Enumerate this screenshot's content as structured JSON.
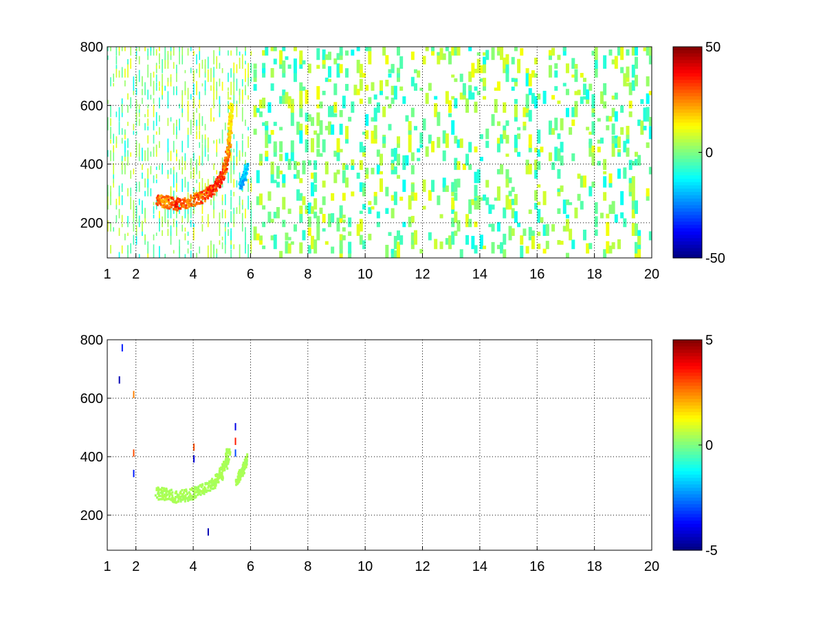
{
  "chart_data": [
    {
      "type": "heatmap",
      "title": "",
      "xlabel": "",
      "ylabel": "",
      "xlim": [
        1,
        20
      ],
      "ylim": [
        80,
        800
      ],
      "x_ticks": [
        1,
        2,
        4,
        6,
        8,
        10,
        12,
        14,
        16,
        18,
        20
      ],
      "y_ticks": [
        200,
        400,
        600,
        800
      ],
      "grid": true,
      "colormap": "jet",
      "clim": [
        -50,
        50
      ],
      "colorbar_ticks": [
        50,
        0,
        -50
      ],
      "description_data": {
        "arc_points": [
          [
            2.7,
            270,
            35
          ],
          [
            3.0,
            268,
            30
          ],
          [
            3.4,
            258,
            40
          ],
          [
            3.8,
            265,
            32
          ],
          [
            4.2,
            280,
            35
          ],
          [
            4.6,
            305,
            40
          ],
          [
            4.9,
            340,
            42
          ],
          [
            5.1,
            390,
            35
          ],
          [
            5.2,
            450,
            30
          ],
          [
            5.25,
            520,
            22
          ],
          [
            5.3,
            600,
            15
          ]
        ],
        "secondary_arc_points": [
          [
            5.6,
            320,
            -25
          ],
          [
            5.75,
            350,
            -25
          ],
          [
            5.85,
            390,
            -20
          ]
        ],
        "background_noise_range": [
          -20,
          20
        ]
      }
    },
    {
      "type": "heatmap",
      "title": "",
      "xlabel": "",
      "ylabel": "",
      "xlim": [
        1,
        20
      ],
      "ylim": [
        80,
        800
      ],
      "x_ticks": [
        1,
        2,
        4,
        6,
        8,
        10,
        12,
        14,
        16,
        18,
        20
      ],
      "y_ticks": [
        200,
        400,
        600,
        800
      ],
      "grid": true,
      "colormap": "jet",
      "clim": [
        -5,
        5
      ],
      "colorbar_ticks": [
        5,
        0,
        -5
      ],
      "description_data": {
        "arc_points": [
          [
            2.7,
            270,
            0.5
          ],
          [
            3.0,
            268,
            0.5
          ],
          [
            3.4,
            258,
            0.5
          ],
          [
            3.8,
            265,
            0.5
          ],
          [
            4.2,
            280,
            0.5
          ],
          [
            4.6,
            300,
            0.5
          ],
          [
            4.9,
            330,
            0.5
          ],
          [
            5.1,
            370,
            0.5
          ],
          [
            5.2,
            410,
            0.5
          ]
        ],
        "secondary_arc_points": [
          [
            5.5,
            310,
            0.5
          ],
          [
            5.7,
            350,
            0.5
          ],
          [
            5.85,
            390,
            0.5
          ]
        ],
        "spikes": [
          [
            1.9,
            600,
            2.5
          ],
          [
            1.9,
            400,
            3.0
          ],
          [
            1.9,
            330,
            -3.5
          ],
          [
            4.0,
            420,
            3.0
          ],
          [
            4.0,
            380,
            -4.0
          ],
          [
            5.45,
            490,
            -4.0
          ],
          [
            5.45,
            440,
            3.5
          ],
          [
            5.45,
            400,
            -3.0
          ],
          [
            4.5,
            130,
            -4.5
          ],
          [
            1.5,
            760,
            -3.5
          ],
          [
            1.4,
            650,
            -4.5
          ]
        ]
      }
    }
  ]
}
